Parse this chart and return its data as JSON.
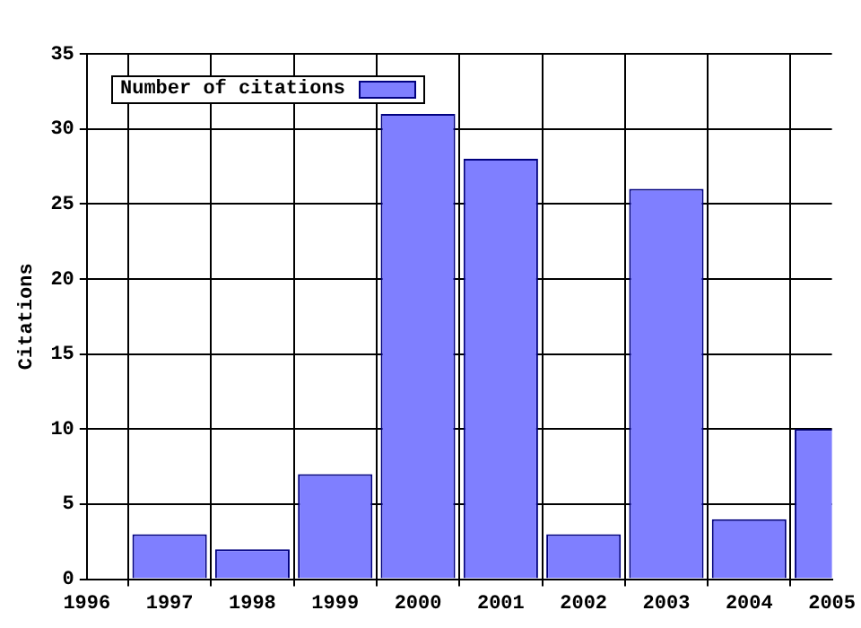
{
  "chart_data": {
    "type": "bar",
    "ylabel": "Citations",
    "x": [
      1997,
      1998,
      1999,
      2000,
      2001,
      2002,
      2003,
      2004,
      2005
    ],
    "series": [
      {
        "name": "Number of citations",
        "color": "#7f7fff",
        "values": [
          3,
          2,
          7,
          31,
          28,
          3,
          26,
          4,
          10
        ]
      }
    ],
    "xlim": [
      1996,
      2005
    ],
    "xticks": [
      1996,
      1997,
      1998,
      1999,
      2000,
      2001,
      2002,
      2003,
      2004,
      2005
    ],
    "ylim": [
      0,
      35
    ],
    "yticks": [
      0,
      5,
      10,
      15,
      20,
      25,
      30,
      35
    ],
    "grid": true,
    "legend": "top left"
  }
}
